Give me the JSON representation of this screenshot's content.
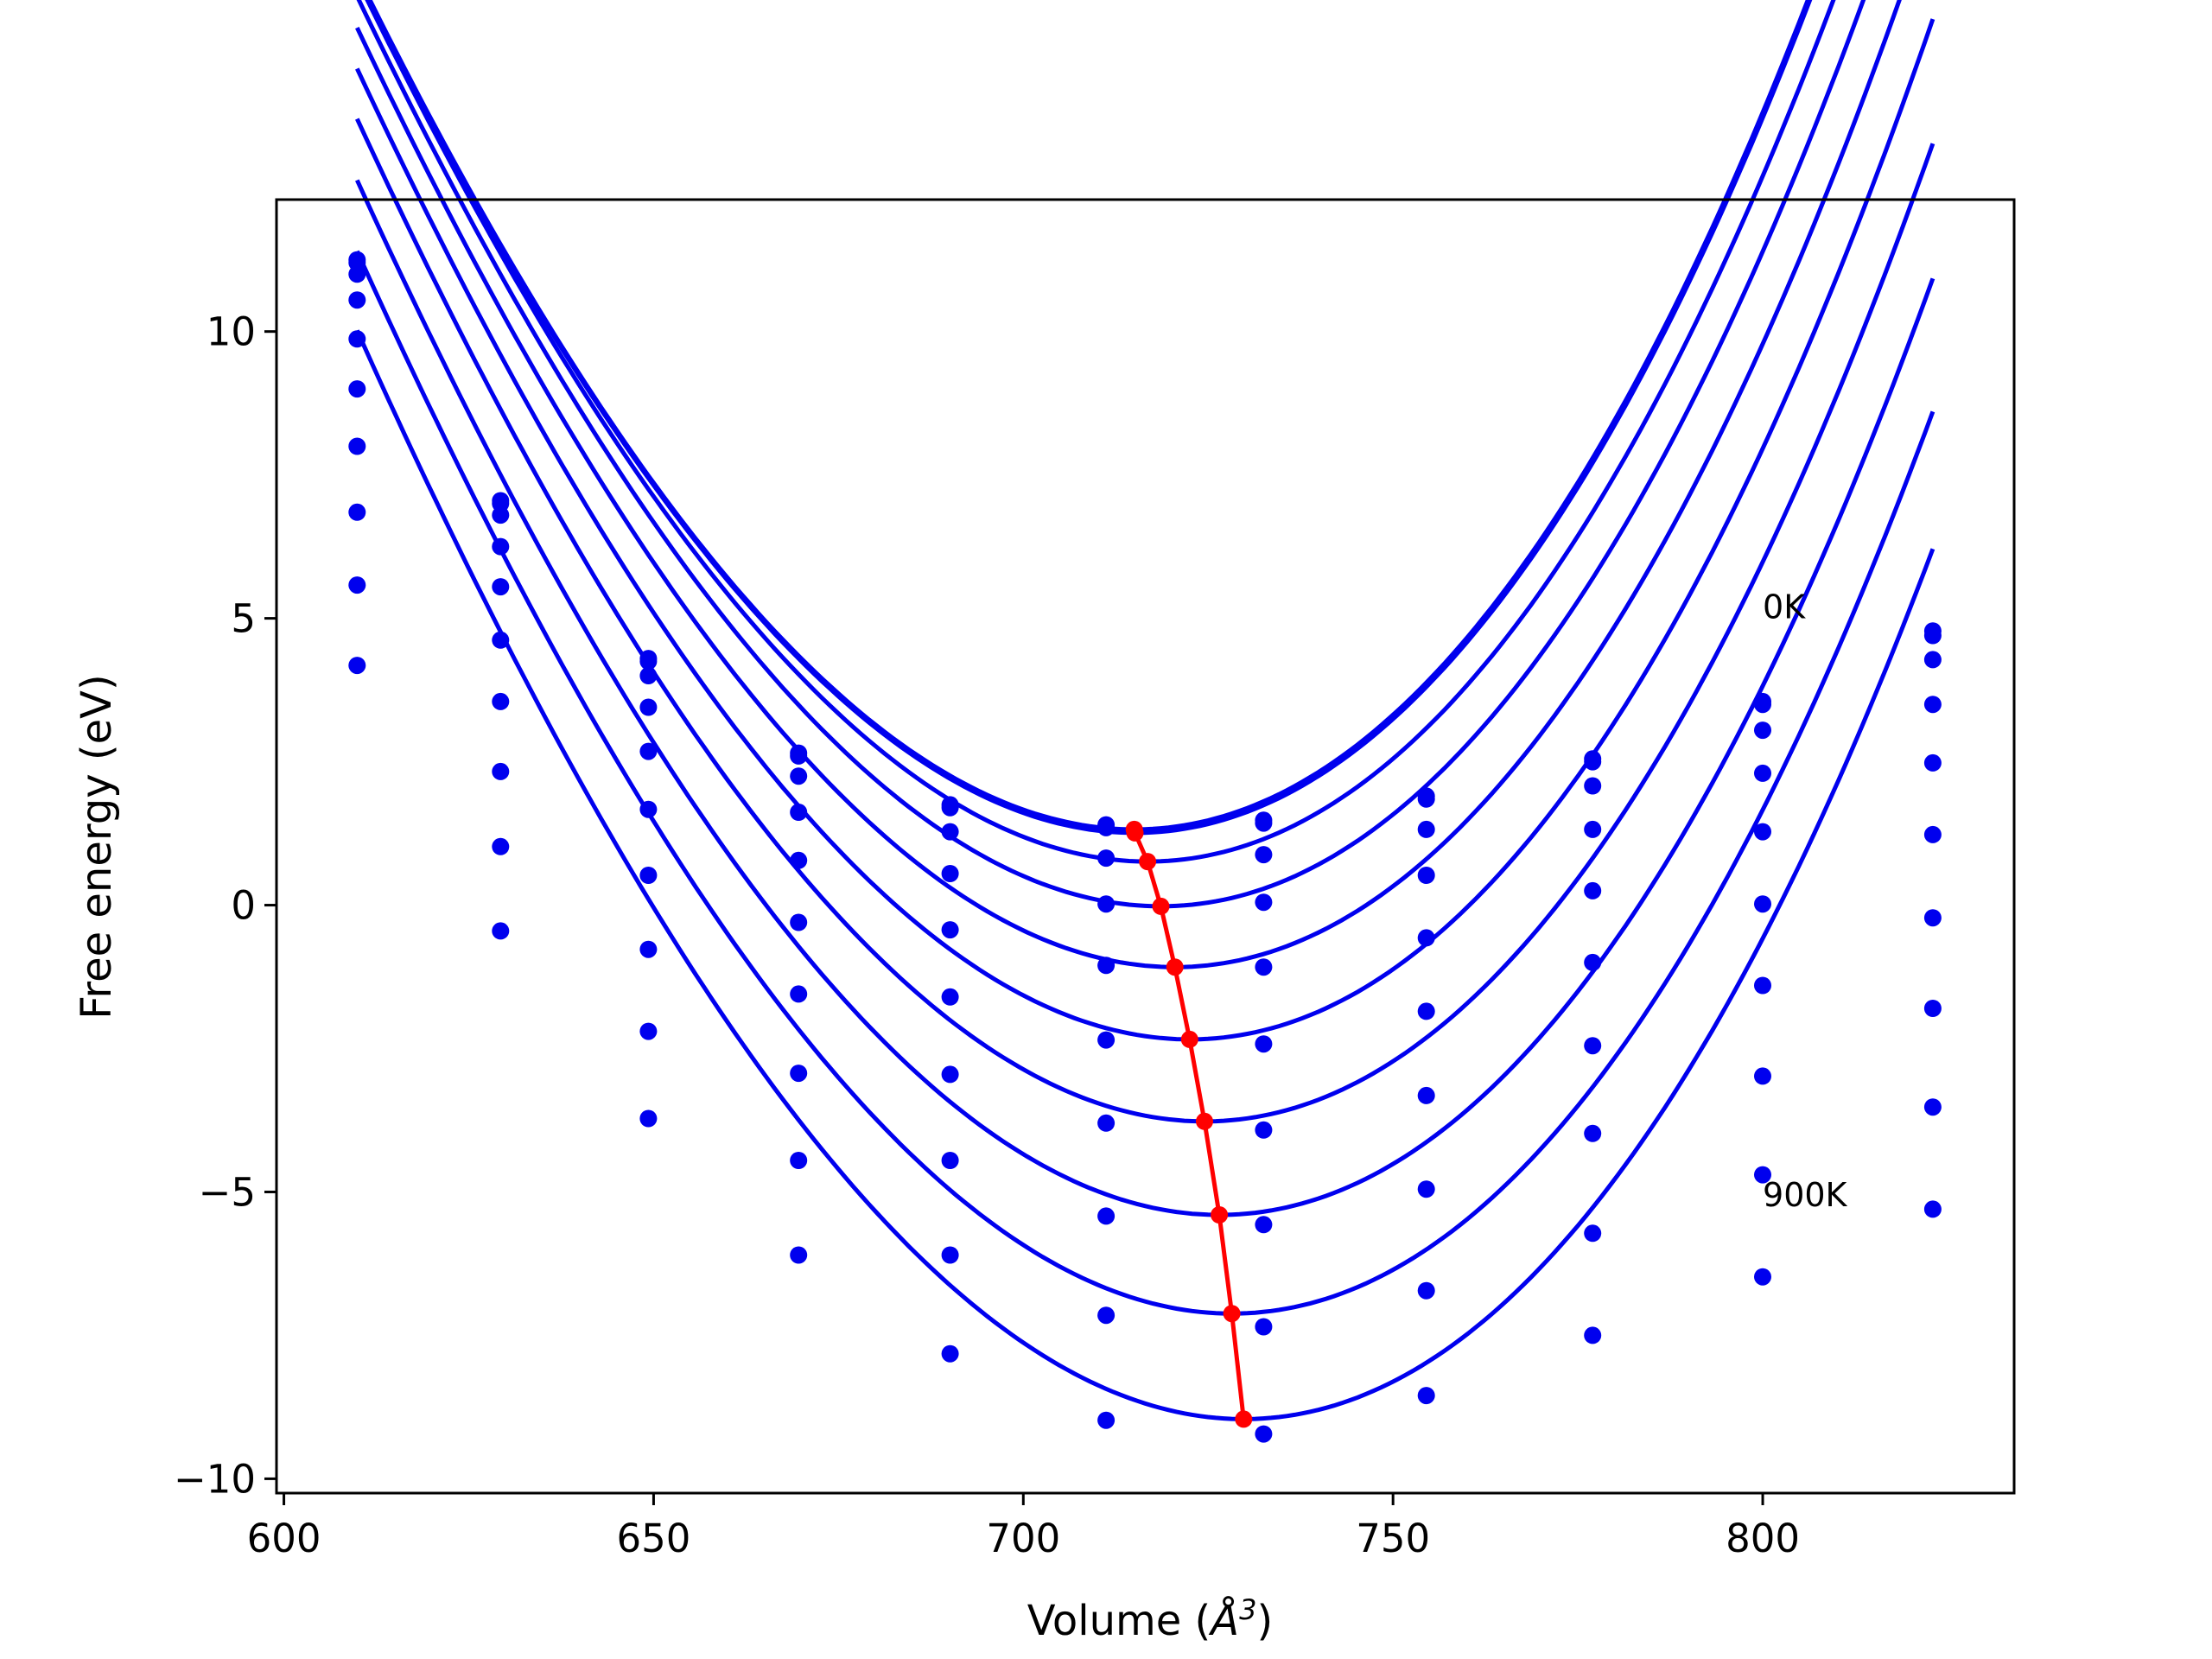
{
  "chart_data": {
    "type": "line",
    "title": "",
    "xlabel": "Volume (",
    "xlabel_sym": "Å",
    "xlabel_sup": "3",
    "xlabel_end": ")",
    "ylabel": "Free energy (eV)",
    "xlim": [
      599,
      834
    ],
    "ylim": [
      -10.25,
      12.3
    ],
    "xticks": [
      600,
      650,
      700,
      750,
      800
    ],
    "yticks": [
      10,
      5,
      0,
      -5,
      -10
    ],
    "ytick_labels": [
      "10",
      "5",
      "0",
      "−5",
      "−10"
    ],
    "grid": false,
    "legend": "none",
    "colors": {
      "fit": "#0000ee",
      "points": "#0000ee",
      "minimum": "#ff0000"
    },
    "volumes": [
      609.9,
      629.3,
      649.3,
      669.6,
      690.1,
      711.2,
      732.5,
      754.5,
      777.0,
      800.0,
      823.0
    ],
    "series": [
      {
        "name": "0K",
        "points": [
          11.25,
          7.05,
          4.3,
          2.65,
          1.75,
          1.4,
          1.48,
          1.9,
          2.55,
          3.55,
          4.78
        ],
        "fit": {
          "V0": 715.0,
          "E0": 1.32,
          "a": 0.00156,
          "b": 2e-06
        }
      },
      {
        "points": [
          11.2,
          7.0,
          4.25,
          2.6,
          1.7,
          1.35,
          1.43,
          1.85,
          2.5,
          3.5,
          4.7
        ],
        "fit": {
          "V0": 715.1,
          "E0": 1.26,
          "a": 0.00156,
          "b": 2e-06
        }
      },
      {
        "points": [
          11.0,
          6.8,
          4.0,
          2.25,
          1.28,
          0.82,
          0.88,
          1.32,
          2.08,
          3.05,
          4.28
        ],
        "fit": {
          "V0": 716.8,
          "E0": 0.76,
          "a": 0.00156,
          "b": 2e-06
        }
      },
      {
        "points": [
          10.55,
          6.25,
          3.45,
          1.62,
          0.55,
          0.02,
          0.05,
          0.52,
          1.32,
          2.3,
          3.5
        ],
        "fit": {
          "V0": 718.6,
          "E0": -0.02,
          "a": 0.00156,
          "b": 2e-06
        }
      },
      {
        "points": [
          9.87,
          5.55,
          2.68,
          0.78,
          -0.43,
          -1.05,
          -1.08,
          -0.57,
          0.25,
          1.28,
          2.48
        ],
        "fit": {
          "V0": 720.5,
          "E0": -1.08,
          "a": 0.00156,
          "b": 2e-06
        }
      },
      {
        "points": [
          9.0,
          4.62,
          1.67,
          -0.3,
          -1.6,
          -2.35,
          -2.42,
          -1.85,
          -1.0,
          0.02,
          1.23
        ],
        "fit": {
          "V0": 722.5,
          "E0": -2.34,
          "a": 0.00156,
          "b": 2e-06
        }
      },
      {
        "points": [
          8.0,
          3.55,
          0.52,
          -1.55,
          -2.95,
          -3.8,
          -3.92,
          -3.32,
          -2.45,
          -1.4,
          -0.22
        ],
        "fit": {
          "V0": 724.5,
          "E0": -3.77,
          "a": 0.00156,
          "b": 2e-06
        }
      },
      {
        "points": [
          6.85,
          2.33,
          -0.77,
          -2.93,
          -4.45,
          -5.42,
          -5.57,
          -4.95,
          -3.98,
          -2.98,
          -1.8
        ],
        "fit": {
          "V0": 726.5,
          "E0": -5.4,
          "a": 0.00156,
          "b": 2e-06
        }
      },
      {
        "points": [
          5.58,
          1.02,
          -2.2,
          -4.45,
          -6.1,
          -7.15,
          -7.35,
          -6.72,
          -5.72,
          -4.7,
          -3.52
        ],
        "fit": {
          "V0": 728.2,
          "E0": -7.12,
          "a": 0.00156,
          "b": 2e-06
        }
      },
      {
        "name": "900K",
        "points": [
          4.18,
          -0.45,
          -3.72,
          -6.1,
          -7.82,
          -8.98,
          -9.22,
          -8.55,
          -7.5,
          -6.48,
          -5.3
        ],
        "fit": {
          "V0": 729.8,
          "E0": -8.96,
          "a": 0.00156,
          "b": 2e-06
        }
      }
    ],
    "minimum_line": {
      "x": [
        715.0,
        715.1,
        716.8,
        718.6,
        720.5,
        722.5,
        724.5,
        726.5,
        728.2,
        729.8
      ],
      "y": [
        1.32,
        1.26,
        0.76,
        -0.02,
        -1.08,
        -2.34,
        -3.77,
        -5.4,
        -7.12,
        -8.96
      ]
    },
    "annotations": [
      {
        "text": "0K",
        "x": 800,
        "y": 5.0
      },
      {
        "text": "900K",
        "x": 800,
        "y": -5.25
      }
    ]
  }
}
